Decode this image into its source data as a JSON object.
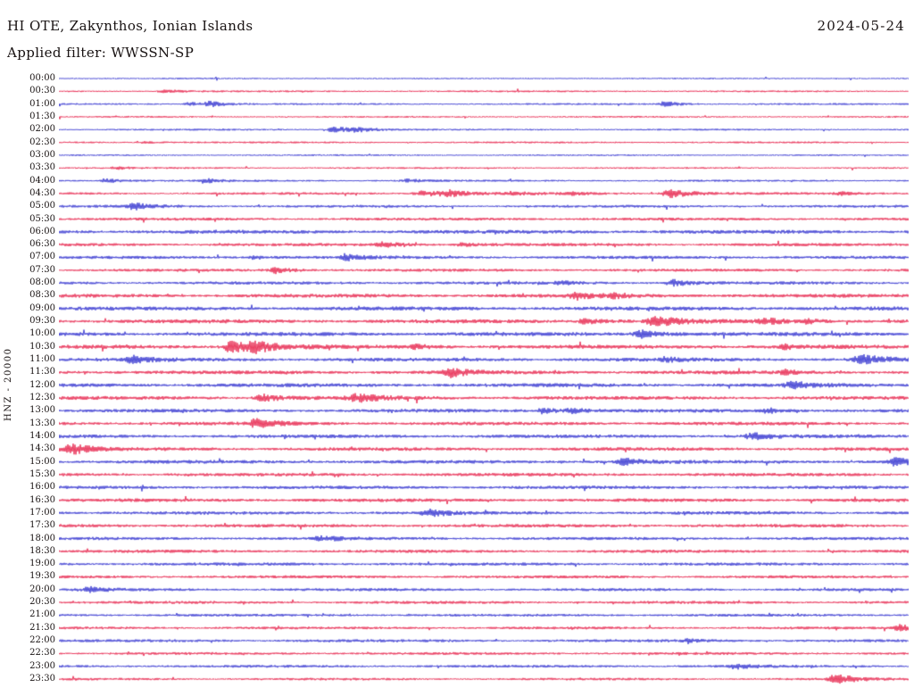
{
  "header": {
    "station": "HI OTE, Zakynthos, Ionian Islands",
    "date": "2024-05-24",
    "filter": "Applied filter: WWSSN-SP"
  },
  "side_label": "HNZ - 20000",
  "colors": {
    "red": "#e4103c",
    "blue": "#2222cc",
    "text": "#181212",
    "background": "#ffffff"
  },
  "chart_data": {
    "type": "line",
    "subtype": "helicorder",
    "title": "HI OTE, Zakynthos, Ionian Islands",
    "date": "2024-05-24",
    "filter": "WWSSN-SP",
    "channel": "HNZ - 20000",
    "minutes_per_row": 30,
    "row_count": 48,
    "x_range_minutes": [
      0,
      30
    ],
    "legend": "none",
    "grid": false,
    "rows": [
      {
        "label": "00:00",
        "color": "blue",
        "noise": 0.8,
        "events": []
      },
      {
        "label": "00:30",
        "color": "red",
        "noise": 0.9,
        "events": [
          {
            "p": 0.125,
            "a": 1.5,
            "w": 10
          }
        ]
      },
      {
        "label": "01:00",
        "color": "blue",
        "noise": 0.9,
        "events": [
          {
            "p": 0.155,
            "a": 2.5,
            "w": 8
          },
          {
            "p": 0.178,
            "a": 3,
            "w": 8
          },
          {
            "p": 0.713,
            "a": 3,
            "w": 8
          }
        ]
      },
      {
        "label": "01:30",
        "color": "red",
        "noise": 0.9,
        "events": []
      },
      {
        "label": "02:00",
        "color": "blue",
        "noise": 0.9,
        "events": [
          {
            "p": 0.325,
            "a": 4,
            "w": 10
          },
          {
            "p": 0.352,
            "a": 2,
            "w": 8
          }
        ]
      },
      {
        "label": "02:30",
        "color": "red",
        "noise": 0.9,
        "events": [
          {
            "p": 0.1,
            "a": 1.2,
            "w": 10
          }
        ]
      },
      {
        "label": "03:00",
        "color": "blue",
        "noise": 0.85,
        "events": []
      },
      {
        "label": "03:30",
        "color": "red",
        "noise": 0.9,
        "events": [
          {
            "p": 0.068,
            "a": 1.4,
            "w": 8
          }
        ]
      },
      {
        "label": "04:00",
        "color": "blue",
        "noise": 1.0,
        "events": [
          {
            "p": 0.055,
            "a": 2.5,
            "w": 8
          },
          {
            "p": 0.172,
            "a": 2.5,
            "w": 8
          },
          {
            "p": 0.41,
            "a": 1.5,
            "w": 10
          }
        ]
      },
      {
        "label": "04:30",
        "color": "red",
        "noise": 1.2,
        "events": [
          {
            "p": 0.43,
            "a": 3,
            "w": 16
          },
          {
            "p": 0.46,
            "a": 2.5,
            "w": 10
          },
          {
            "p": 0.535,
            "a": 1.8,
            "w": 10
          },
          {
            "p": 0.6,
            "a": 1.5,
            "w": 10
          },
          {
            "p": 0.72,
            "a": 4.5,
            "w": 14
          },
          {
            "p": 0.92,
            "a": 1.5,
            "w": 8
          }
        ]
      },
      {
        "label": "05:00",
        "color": "blue",
        "noise": 1.3,
        "events": [
          {
            "p": 0.088,
            "a": 3.5,
            "w": 10
          }
        ]
      },
      {
        "label": "05:30",
        "color": "red",
        "noise": 1.4,
        "events": []
      },
      {
        "label": "06:00",
        "color": "blue",
        "noise": 1.8,
        "events": []
      },
      {
        "label": "06:30",
        "color": "red",
        "noise": 1.5,
        "events": [
          {
            "p": 0.382,
            "a": 2.5,
            "w": 10
          },
          {
            "p": 0.475,
            "a": 2,
            "w": 8
          }
        ]
      },
      {
        "label": "07:00",
        "color": "blue",
        "noise": 1.5,
        "events": [
          {
            "p": 0.23,
            "a": 1.8,
            "w": 8
          },
          {
            "p": 0.34,
            "a": 3,
            "w": 10
          }
        ]
      },
      {
        "label": "07:30",
        "color": "red",
        "noise": 1.4,
        "events": [
          {
            "p": 0.256,
            "a": 3.5,
            "w": 8
          }
        ]
      },
      {
        "label": "08:00",
        "color": "blue",
        "noise": 1.5,
        "events": [
          {
            "p": 0.59,
            "a": 1.8,
            "w": 8
          },
          {
            "p": 0.723,
            "a": 3.5,
            "w": 10
          }
        ]
      },
      {
        "label": "08:30",
        "color": "red",
        "noise": 1.8,
        "events": [
          {
            "p": 0.61,
            "a": 3.5,
            "w": 10
          },
          {
            "p": 0.655,
            "a": 2,
            "w": 8
          }
        ]
      },
      {
        "label": "09:00",
        "color": "blue",
        "noise": 1.9,
        "events": []
      },
      {
        "label": "09:30",
        "color": "red",
        "noise": 1.9,
        "events": [
          {
            "p": 0.62,
            "a": 3,
            "w": 10
          },
          {
            "p": 0.703,
            "a": 4.5,
            "w": 14
          },
          {
            "p": 0.83,
            "a": 3,
            "w": 10
          },
          {
            "p": 0.88,
            "a": 2,
            "w": 8
          }
        ]
      },
      {
        "label": "10:00",
        "color": "blue",
        "noise": 1.9,
        "events": [
          {
            "p": 0.685,
            "a": 4,
            "w": 10
          }
        ]
      },
      {
        "label": "10:30",
        "color": "red",
        "noise": 1.9,
        "events": [
          {
            "p": 0.205,
            "a": 6,
            "w": 14
          },
          {
            "p": 0.232,
            "a": 4.5,
            "w": 10
          },
          {
            "p": 0.42,
            "a": 2,
            "w": 8
          },
          {
            "p": 0.855,
            "a": 2,
            "w": 8
          }
        ]
      },
      {
        "label": "11:00",
        "color": "blue",
        "noise": 1.8,
        "events": [
          {
            "p": 0.088,
            "a": 3.5,
            "w": 10
          },
          {
            "p": 0.715,
            "a": 2.5,
            "w": 8
          },
          {
            "p": 0.945,
            "a": 5,
            "w": 12
          }
        ]
      },
      {
        "label": "11:30",
        "color": "red",
        "noise": 1.8,
        "events": [
          {
            "p": 0.461,
            "a": 4.5,
            "w": 10
          },
          {
            "p": 0.855,
            "a": 2.5,
            "w": 8
          }
        ]
      },
      {
        "label": "12:00",
        "color": "blue",
        "noise": 1.8,
        "events": [
          {
            "p": 0.863,
            "a": 3.5,
            "w": 10
          }
        ]
      },
      {
        "label": "12:30",
        "color": "red",
        "noise": 1.8,
        "events": [
          {
            "p": 0.24,
            "a": 3.5,
            "w": 10
          },
          {
            "p": 0.35,
            "a": 4.5,
            "w": 12
          }
        ]
      },
      {
        "label": "13:00",
        "color": "blue",
        "noise": 1.7,
        "events": [
          {
            "p": 0.571,
            "a": 2.5,
            "w": 10
          },
          {
            "p": 0.603,
            "a": 2.5,
            "w": 8
          },
          {
            "p": 0.835,
            "a": 2.5,
            "w": 10
          }
        ]
      },
      {
        "label": "13:30",
        "color": "red",
        "noise": 1.7,
        "events": [
          {
            "p": 0.233,
            "a": 5,
            "w": 10
          }
        ]
      },
      {
        "label": "14:00",
        "color": "blue",
        "noise": 1.7,
        "events": [
          {
            "p": 0.816,
            "a": 3.5,
            "w": 10
          }
        ]
      },
      {
        "label": "14:30",
        "color": "red",
        "noise": 1.7,
        "events": [
          {
            "p": 0.015,
            "a": 5.5,
            "w": 10
          }
        ]
      },
      {
        "label": "15:00",
        "color": "blue",
        "noise": 1.7,
        "events": [
          {
            "p": 0.666,
            "a": 3.5,
            "w": 11
          },
          {
            "p": 0.985,
            "a": 4,
            "w": 10
          }
        ]
      },
      {
        "label": "15:30",
        "color": "red",
        "noise": 1.6,
        "events": []
      },
      {
        "label": "16:00",
        "color": "blue",
        "noise": 1.6,
        "events": []
      },
      {
        "label": "16:30",
        "color": "red",
        "noise": 1.7,
        "events": []
      },
      {
        "label": "17:00",
        "color": "blue",
        "noise": 1.6,
        "events": [
          {
            "p": 0.435,
            "a": 4,
            "w": 10
          }
        ]
      },
      {
        "label": "17:30",
        "color": "red",
        "noise": 1.6,
        "events": []
      },
      {
        "label": "18:00",
        "color": "blue",
        "noise": 1.5,
        "events": [
          {
            "p": 0.308,
            "a": 3,
            "w": 10
          }
        ]
      },
      {
        "label": "18:30",
        "color": "red",
        "noise": 1.5,
        "events": []
      },
      {
        "label": "19:00",
        "color": "blue",
        "noise": 1.5,
        "events": []
      },
      {
        "label": "19:30",
        "color": "red",
        "noise": 1.4,
        "events": []
      },
      {
        "label": "20:00",
        "color": "blue",
        "noise": 1.4,
        "events": [
          {
            "p": 0.036,
            "a": 3,
            "w": 8
          }
        ]
      },
      {
        "label": "20:30",
        "color": "red",
        "noise": 1.4,
        "events": []
      },
      {
        "label": "21:00",
        "color": "blue",
        "noise": 1.3,
        "events": []
      },
      {
        "label": "21:30",
        "color": "red",
        "noise": 1.3,
        "events": [
          {
            "p": 0.99,
            "a": 3.5,
            "w": 8
          }
        ]
      },
      {
        "label": "22:00",
        "color": "blue",
        "noise": 1.4,
        "events": [
          {
            "p": 0.74,
            "a": 1.5,
            "w": 8
          }
        ]
      },
      {
        "label": "22:30",
        "color": "red",
        "noise": 1.3,
        "events": []
      },
      {
        "label": "23:00",
        "color": "blue",
        "noise": 1.3,
        "events": [
          {
            "p": 0.797,
            "a": 2.5,
            "w": 10
          }
        ]
      },
      {
        "label": "23:30",
        "color": "red",
        "noise": 1.2,
        "events": [
          {
            "p": 0.913,
            "a": 6,
            "w": 10
          }
        ]
      }
    ]
  }
}
